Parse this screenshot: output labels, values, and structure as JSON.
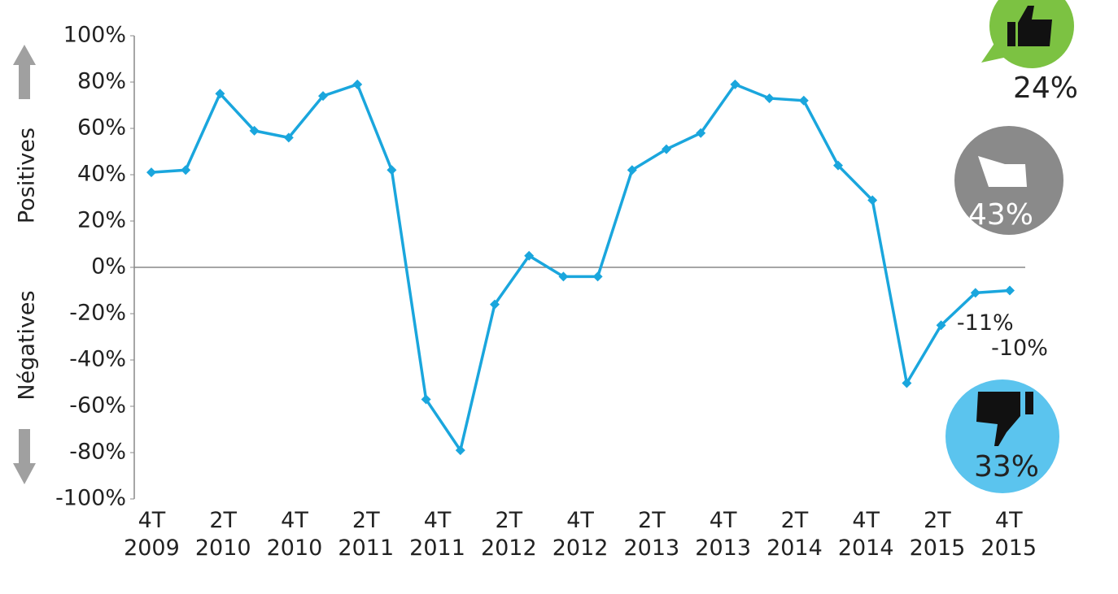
{
  "chart_data": {
    "type": "line",
    "categories": [
      "4T 2009",
      null,
      "2T 2010",
      null,
      "4T 2010",
      null,
      "2T 2011",
      null,
      "4T 2011",
      null,
      "2T 2012",
      null,
      "4T 2012",
      null,
      "2T 2013",
      null,
      "4T 2013",
      null,
      "2T 2014",
      null,
      "4T 2014",
      null,
      "2T 2015",
      null,
      "4T 2015",
      null
    ],
    "series": [
      {
        "color": "#1aa6dd",
        "values": [
          41,
          42,
          75,
          59,
          56,
          74,
          79,
          42,
          -57,
          -79,
          -16,
          5,
          -4,
          -4,
          42,
          51,
          58,
          79,
          73,
          72,
          44,
          29,
          -50,
          -25,
          -11,
          -10
        ],
        "value_labels": [
          null,
          null,
          null,
          null,
          null,
          null,
          null,
          null,
          null,
          null,
          null,
          null,
          null,
          null,
          null,
          null,
          null,
          null,
          null,
          null,
          null,
          null,
          null,
          null,
          "-11%",
          "-10%"
        ]
      }
    ],
    "ylim": [
      -100,
      100
    ],
    "yticks": [
      {
        "value": 100,
        "label": "100%"
      },
      {
        "value": 80,
        "label": "80%"
      },
      {
        "value": 60,
        "label": "60%"
      },
      {
        "value": 40,
        "label": "40%"
      },
      {
        "value": 20,
        "label": "20%"
      },
      {
        "value": 0,
        "label": "0%"
      },
      {
        "value": -20,
        "label": "-20%"
      },
      {
        "value": -40,
        "label": "-40%"
      },
      {
        "value": -60,
        "label": "-60%"
      },
      {
        "value": -80,
        "label": "-80%"
      },
      {
        "value": -100,
        "label": "-100%"
      }
    ],
    "y_axis_labels": [
      "Positives",
      "Négatives"
    ],
    "sentiment": [
      {
        "value": 24,
        "label": "24%",
        "color": "#7cc242"
      },
      {
        "value": 43,
        "label": "43%",
        "color": "#8a8a8a"
      },
      {
        "value": 33,
        "label": "33%",
        "color": "#5bc4ee"
      }
    ]
  }
}
